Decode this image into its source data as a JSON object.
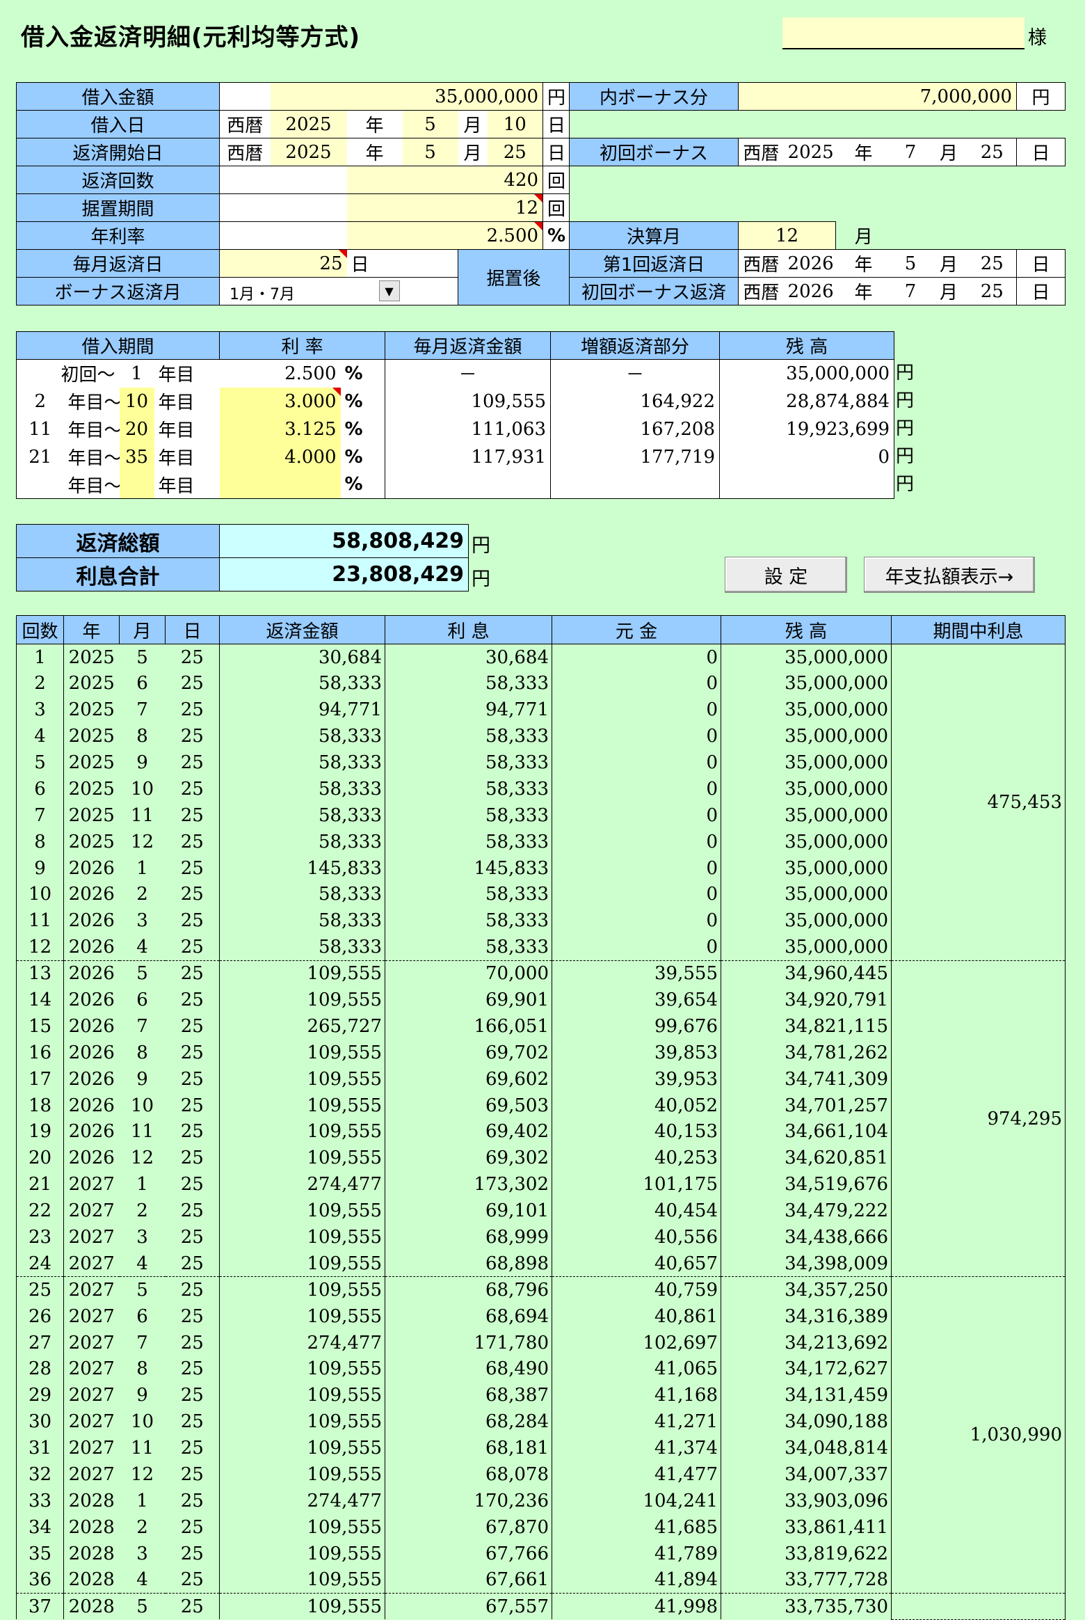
{
  "title": "借入金返済明細(元利均等方式)",
  "sama": "様",
  "form": {
    "loan_amount_label": "借入金額",
    "loan_amount": "35,000,000",
    "bonus_part_label": "内ボーナス分",
    "bonus_part": "7,000,000",
    "yen": "円",
    "borrow_date_label": "借入日",
    "era": "西暦",
    "year_u": "年",
    "month_u": "月",
    "day_u": "日",
    "borrow_y": "2025",
    "borrow_m": "5",
    "borrow_d": "10",
    "start_label": "返済開始日",
    "start_y": "2025",
    "start_m": "5",
    "start_d": "25",
    "first_bonus_label": "初回ボーナス",
    "fb_y": "2025",
    "fb_m": "7",
    "fb_d": "25",
    "count_label": "返済回数",
    "count": "420",
    "kai": "回",
    "grace_label": "据置期間",
    "grace": "12",
    "rate_label": "年利率",
    "rate": "2.500",
    "pct": "%",
    "settle_label": "決算月",
    "settle": "12",
    "payday_label": "毎月返済日",
    "payday": "25",
    "after_grace": "据置後",
    "first_pay_label": "第1回返済日",
    "fp_y": "2026",
    "fp_m": "5",
    "fp_d": "25",
    "bonus_month_label": "ボーナス返済月",
    "bonus_month": "1月・7月",
    "first_bonus_pay_label": "初回ボーナス返済",
    "fbp_y": "2026",
    "fbp_m": "7",
    "fbp_d": "25"
  },
  "period": {
    "headers": [
      "借入期間",
      "利 率",
      "毎月返済金額",
      "増額返済部分",
      "残 高"
    ],
    "from_first": "初回～",
    "year_from": "年目～",
    "year_to": "年目",
    "rows": [
      {
        "from": "",
        "to": "1",
        "rate": "2.500",
        "monthly": "－",
        "bonus": "－",
        "balance": "35,000,000"
      },
      {
        "from": "2",
        "to": "10",
        "rate": "3.000",
        "monthly": "109,555",
        "bonus": "164,922",
        "balance": "28,874,884"
      },
      {
        "from": "11",
        "to": "20",
        "rate": "3.125",
        "monthly": "111,063",
        "bonus": "167,208",
        "balance": "19,923,699"
      },
      {
        "from": "21",
        "to": "35",
        "rate": "4.000",
        "monthly": "117,931",
        "bonus": "177,719",
        "balance": "0"
      },
      {
        "from": "",
        "to": "",
        "rate": "",
        "monthly": "",
        "bonus": "",
        "balance": ""
      }
    ]
  },
  "summary": {
    "total_label": "返済総額",
    "total": "58,808,429",
    "interest_label": "利息合計",
    "interest": "23,808,429"
  },
  "buttons": {
    "settings": "設 定",
    "annual": "年支払額表示→"
  },
  "schedule": {
    "headers": [
      "回数",
      "年",
      "月",
      "日",
      "返済金額",
      "利 息",
      "元 金",
      "残 高",
      "期間中利息"
    ],
    "rows": [
      [
        "1",
        "2025",
        "5",
        "25",
        "30,684",
        "30,684",
        "0",
        "35,000,000"
      ],
      [
        "2",
        "2025",
        "6",
        "25",
        "58,333",
        "58,333",
        "0",
        "35,000,000"
      ],
      [
        "3",
        "2025",
        "7",
        "25",
        "94,771",
        "94,771",
        "0",
        "35,000,000"
      ],
      [
        "4",
        "2025",
        "8",
        "25",
        "58,333",
        "58,333",
        "0",
        "35,000,000"
      ],
      [
        "5",
        "2025",
        "9",
        "25",
        "58,333",
        "58,333",
        "0",
        "35,000,000"
      ],
      [
        "6",
        "2025",
        "10",
        "25",
        "58,333",
        "58,333",
        "0",
        "35,000,000"
      ],
      [
        "7",
        "2025",
        "11",
        "25",
        "58,333",
        "58,333",
        "0",
        "35,000,000"
      ],
      [
        "8",
        "2025",
        "12",
        "25",
        "58,333",
        "58,333",
        "0",
        "35,000,000"
      ],
      [
        "9",
        "2026",
        "1",
        "25",
        "145,833",
        "145,833",
        "0",
        "35,000,000"
      ],
      [
        "10",
        "2026",
        "2",
        "25",
        "58,333",
        "58,333",
        "0",
        "35,000,000"
      ],
      [
        "11",
        "2026",
        "3",
        "25",
        "58,333",
        "58,333",
        "0",
        "35,000,000"
      ],
      [
        "12",
        "2026",
        "4",
        "25",
        "58,333",
        "58,333",
        "0",
        "35,000,000"
      ],
      [
        "13",
        "2026",
        "5",
        "25",
        "109,555",
        "70,000",
        "39,555",
        "34,960,445"
      ],
      [
        "14",
        "2026",
        "6",
        "25",
        "109,555",
        "69,901",
        "39,654",
        "34,920,791"
      ],
      [
        "15",
        "2026",
        "7",
        "25",
        "265,727",
        "166,051",
        "99,676",
        "34,821,115"
      ],
      [
        "16",
        "2026",
        "8",
        "25",
        "109,555",
        "69,702",
        "39,853",
        "34,781,262"
      ],
      [
        "17",
        "2026",
        "9",
        "25",
        "109,555",
        "69,602",
        "39,953",
        "34,741,309"
      ],
      [
        "18",
        "2026",
        "10",
        "25",
        "109,555",
        "69,503",
        "40,052",
        "34,701,257"
      ],
      [
        "19",
        "2026",
        "11",
        "25",
        "109,555",
        "69,402",
        "40,153",
        "34,661,104"
      ],
      [
        "20",
        "2026",
        "12",
        "25",
        "109,555",
        "69,302",
        "40,253",
        "34,620,851"
      ],
      [
        "21",
        "2027",
        "1",
        "25",
        "274,477",
        "173,302",
        "101,175",
        "34,519,676"
      ],
      [
        "22",
        "2027",
        "2",
        "25",
        "109,555",
        "69,101",
        "40,454",
        "34,479,222"
      ],
      [
        "23",
        "2027",
        "3",
        "25",
        "109,555",
        "68,999",
        "40,556",
        "34,438,666"
      ],
      [
        "24",
        "2027",
        "4",
        "25",
        "109,555",
        "68,898",
        "40,657",
        "34,398,009"
      ],
      [
        "25",
        "2027",
        "5",
        "25",
        "109,555",
        "68,796",
        "40,759",
        "34,357,250"
      ],
      [
        "26",
        "2027",
        "6",
        "25",
        "109,555",
        "68,694",
        "40,861",
        "34,316,389"
      ],
      [
        "27",
        "2027",
        "7",
        "25",
        "274,477",
        "171,780",
        "102,697",
        "34,213,692"
      ],
      [
        "28",
        "2027",
        "8",
        "25",
        "109,555",
        "68,490",
        "41,065",
        "34,172,627"
      ],
      [
        "29",
        "2027",
        "9",
        "25",
        "109,555",
        "68,387",
        "41,168",
        "34,131,459"
      ],
      [
        "30",
        "2027",
        "10",
        "25",
        "109,555",
        "68,284",
        "41,271",
        "34,090,188"
      ],
      [
        "31",
        "2027",
        "11",
        "25",
        "109,555",
        "68,181",
        "41,374",
        "34,048,814"
      ],
      [
        "32",
        "2027",
        "12",
        "25",
        "109,555",
        "68,078",
        "41,477",
        "34,007,337"
      ],
      [
        "33",
        "2028",
        "1",
        "25",
        "274,477",
        "170,236",
        "104,241",
        "33,903,096"
      ],
      [
        "34",
        "2028",
        "2",
        "25",
        "109,555",
        "67,870",
        "41,685",
        "33,861,411"
      ],
      [
        "35",
        "2028",
        "3",
        "25",
        "109,555",
        "67,766",
        "41,789",
        "33,819,622"
      ],
      [
        "36",
        "2028",
        "4",
        "25",
        "109,555",
        "67,661",
        "41,894",
        "33,777,728"
      ],
      [
        "37",
        "2028",
        "5",
        "25",
        "109,555",
        "67,557",
        "41,998",
        "33,735,730"
      ]
    ],
    "period_interest": [
      "475,453",
      "974,295",
      "1,030,990"
    ]
  }
}
